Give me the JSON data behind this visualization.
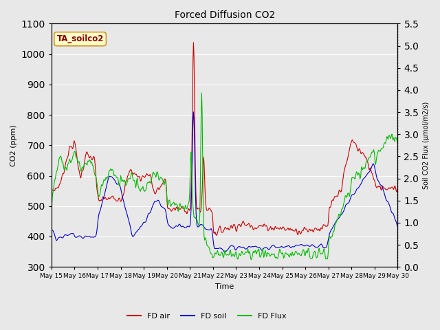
{
  "title": "Forced Diffusion CO2",
  "xlabel": "Time",
  "ylabel_left": "CO2 (ppm)",
  "ylabel_right": "Soil CO2 Flux (μmol/m2/s)",
  "annotation": "TA_soilco2",
  "ylim_left": [
    300,
    1100
  ],
  "ylim_right": [
    0.0,
    5.5
  ],
  "yticks_left": [
    300,
    400,
    500,
    600,
    700,
    800,
    900,
    1000,
    1100
  ],
  "yticks_right": [
    0.0,
    0.5,
    1.0,
    1.5,
    2.0,
    2.5,
    3.0,
    3.5,
    4.0,
    4.5,
    5.0,
    5.5
  ],
  "xticklabels": [
    "May 15",
    "May 16",
    "May 17",
    "May 18",
    "May 19",
    "May 20",
    "May 21",
    "May 22",
    "May 23",
    "May 24",
    "May 25",
    "May 26",
    "May 27",
    "May 28",
    "May 29",
    "May 30"
  ],
  "legend_labels": [
    "FD air",
    "FD soil",
    "FD Flux"
  ],
  "legend_colors": [
    "#cc0000",
    "#0000cc",
    "#00bb00"
  ],
  "bg_color": "#e8e8e8",
  "plot_bg_color": "#e8e8e8",
  "grid_color": "#ffffff",
  "line_colors": [
    "#cc0000",
    "#0000cc",
    "#00bb00"
  ],
  "line_width": 0.8,
  "figsize": [
    6.4,
    4.8
  ],
  "dpi": 100
}
